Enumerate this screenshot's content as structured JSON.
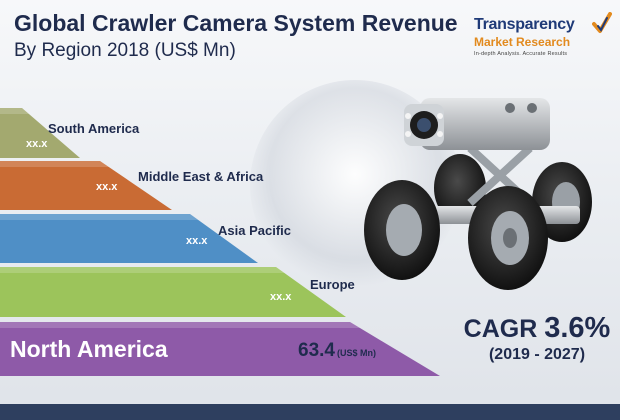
{
  "title": {
    "line1": "Global Crawler Camera System Revenue",
    "line2": "By Region 2018 (US$ Mn)"
  },
  "logo": {
    "name": "Transparency",
    "sub": "Market Research",
    "tagline": "In-depth Analysis. Accurate Results"
  },
  "chart_data": {
    "type": "bar",
    "title": "Global Crawler Camera System Revenue By Region 2018 (US$ Mn)",
    "categories": [
      "South America",
      "Middle East & Africa",
      "Asia Pacific",
      "Europe",
      "North America"
    ],
    "values": [
      null,
      null,
      null,
      null,
      63.4
    ],
    "value_labels": [
      "xx.x",
      "xx.x",
      "xx.x",
      "xx.x",
      "63.4"
    ],
    "unit": "(US$ Mn)",
    "colors": [
      "#a3a96f",
      "#c96b34",
      "#4f8fc6",
      "#9cc45b",
      "#8e5aa8"
    ]
  },
  "cagr": {
    "label": "CAGR",
    "value": "3.6%",
    "period": "(2019 - 2027)"
  }
}
